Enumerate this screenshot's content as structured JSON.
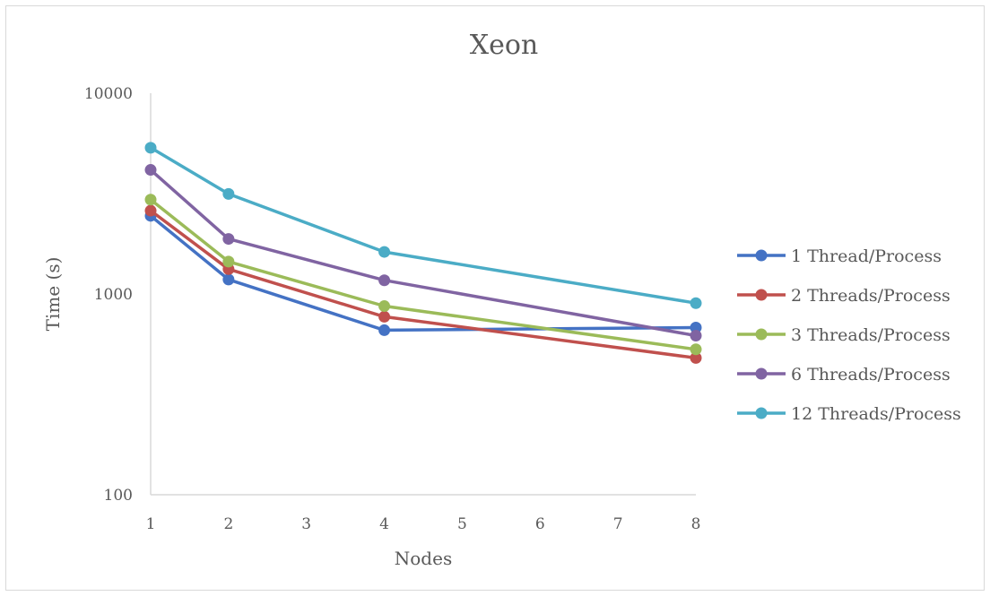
{
  "chart_data": {
    "type": "line",
    "title": "Xeon",
    "xlabel": "Nodes",
    "ylabel": "Time (s)",
    "x_ticks": [
      "1",
      "2",
      "3",
      "4",
      "5",
      "6",
      "7",
      "8"
    ],
    "xlim": [
      1,
      8
    ],
    "y_scale": "log",
    "ylim": [
      100,
      10000
    ],
    "y_ticks": [
      "100",
      "1000",
      "10000"
    ],
    "x": [
      1,
      2,
      4,
      8
    ],
    "grid": false,
    "legend_position": "right",
    "series": [
      {
        "name": "1 Thread/Process",
        "color": "#4472c4",
        "values": [
          2450,
          1180,
          660,
          680
        ]
      },
      {
        "name": "2 Threads/Process",
        "color": "#c0504d",
        "values": [
          2600,
          1330,
          770,
          480
        ]
      },
      {
        "name": "3 Threads/Process",
        "color": "#9bbb59",
        "values": [
          2950,
          1450,
          870,
          530
        ]
      },
      {
        "name": "6 Threads/Process",
        "color": "#8064a2",
        "values": [
          4150,
          1880,
          1170,
          620
        ]
      },
      {
        "name": "12 Threads/Process",
        "color": "#4bacc6",
        "values": [
          5350,
          3150,
          1620,
          900
        ]
      }
    ]
  }
}
